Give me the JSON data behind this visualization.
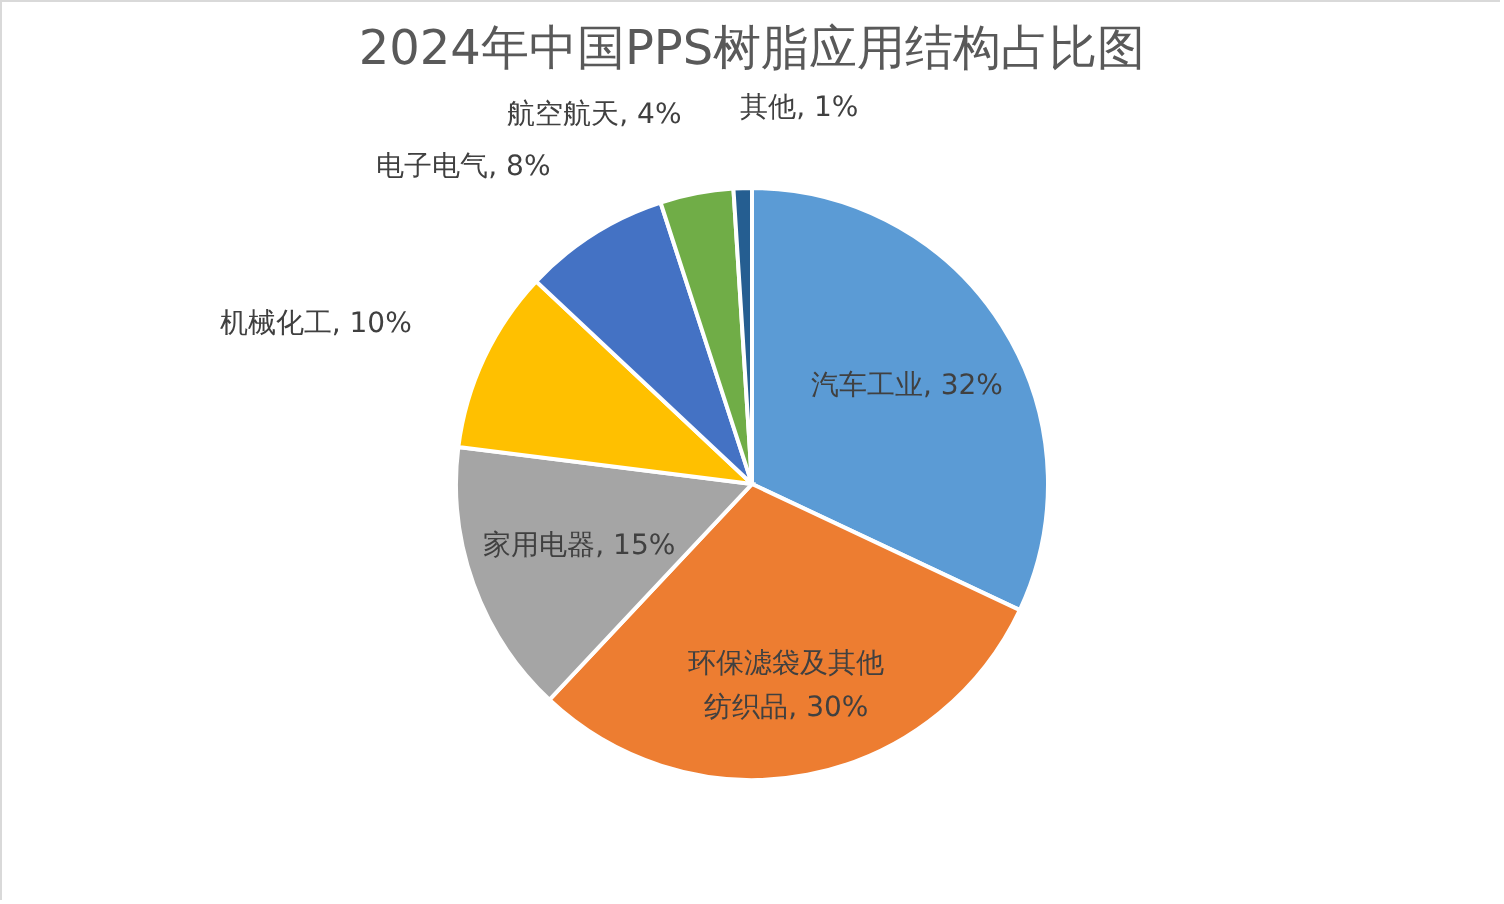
{
  "chart_data": {
    "type": "pie",
    "title": "2024年中国PPS树脂应用结构占比图",
    "categories": [
      "汽车工业",
      "环保滤袋及其他纺织品",
      "家用电器",
      "机械化工",
      "电子电气",
      "航空航天",
      "其他"
    ],
    "values": [
      32,
      30,
      15,
      10,
      8,
      4,
      1
    ],
    "value_labels": [
      "32%",
      "30%",
      "15%",
      "10%",
      "8%",
      "4%",
      "1%"
    ],
    "colors": [
      "#5b9bd5",
      "#ed7d31",
      "#a5a5a5",
      "#ffc000",
      "#4472c4",
      "#70ad47",
      "#255e91"
    ],
    "legend": false
  }
}
